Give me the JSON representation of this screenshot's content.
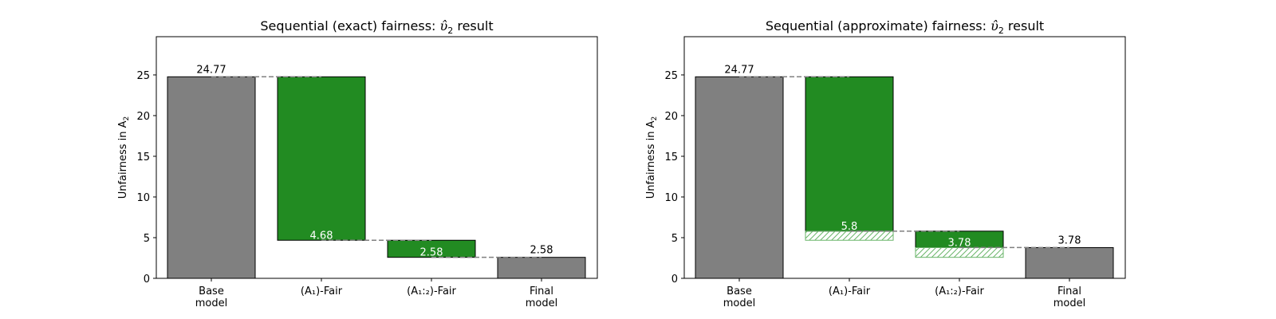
{
  "colors": {
    "base": "#808080",
    "fair": "#228b22",
    "connector": "#808080",
    "hatch": "#6ab56a"
  },
  "chart_data": [
    {
      "type": "bar",
      "subtype": "waterfall",
      "title": "Sequential (exact) fairness: Ŷ₂ result",
      "title_prefix": "Sequential (exact) fairness: ",
      "title_symbol": "υ̂",
      "title_sub": "2",
      "title_suffix": " result",
      "ylabel_prefix": "Unfairness in A",
      "ylabel_sub": "2",
      "ylim": [
        0,
        29.7
      ],
      "yticks": [
        0,
        5,
        10,
        15,
        20,
        25
      ],
      "categories": [
        {
          "line1": "Base",
          "line2": "model"
        },
        {
          "line1": "(A₁)-Fair",
          "line2": ""
        },
        {
          "line1": "(A₁:₂)-Fair",
          "line2": ""
        },
        {
          "line1": "Final",
          "line2": "model"
        }
      ],
      "bars": [
        {
          "bottom": 0,
          "top": 24.77,
          "kind": "base",
          "label": "24.77",
          "label_pos": "above"
        },
        {
          "bottom": 4.68,
          "top": 24.77,
          "kind": "fair",
          "label": "4.68",
          "label_pos": "inside-bottom"
        },
        {
          "bottom": 2.58,
          "top": 4.68,
          "kind": "fair",
          "label": "2.58",
          "label_pos": "inside-bottom"
        },
        {
          "bottom": 0,
          "top": 2.58,
          "kind": "base",
          "label": "2.58",
          "label_pos": "above"
        }
      ],
      "hatched": [],
      "grid": false
    },
    {
      "type": "bar",
      "subtype": "waterfall",
      "title_prefix": "Sequential (approximate) fairness: ",
      "title_symbol": "υ̂",
      "title_sub": "2",
      "title_suffix": " result",
      "ylabel_prefix": "Unfairness in A",
      "ylabel_sub": "2",
      "ylim": [
        0,
        29.7
      ],
      "yticks": [
        0,
        5,
        10,
        15,
        20,
        25
      ],
      "categories": [
        {
          "line1": "Base",
          "line2": "model"
        },
        {
          "line1": "(A₁)-Fair",
          "line2": ""
        },
        {
          "line1": "(A₁:₂)-Fair",
          "line2": ""
        },
        {
          "line1": "Final",
          "line2": "model"
        }
      ],
      "bars": [
        {
          "bottom": 0,
          "top": 24.77,
          "kind": "base",
          "label": "24.77",
          "label_pos": "above"
        },
        {
          "bottom": 5.8,
          "top": 24.77,
          "kind": "fair",
          "label": "5.8",
          "label_pos": "inside-bottom"
        },
        {
          "bottom": 3.78,
          "top": 5.8,
          "kind": "fair",
          "label": "3.78",
          "label_pos": "inside-bottom"
        },
        {
          "bottom": 0,
          "top": 3.78,
          "kind": "base",
          "label": "3.78",
          "label_pos": "above"
        }
      ],
      "hatched": [
        {
          "index": 1,
          "bottom": 4.68,
          "top": 5.8
        },
        {
          "index": 2,
          "bottom": 2.58,
          "top": 3.78
        }
      ],
      "grid": false
    }
  ]
}
